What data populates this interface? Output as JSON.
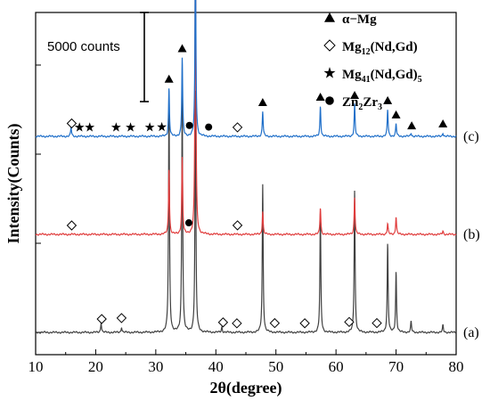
{
  "chart_data": {
    "type": "line",
    "xlabel": "2θ(degree)",
    "ylabel": "Intensity(Counts)",
    "xlim": [
      10,
      80
    ],
    "x_ticks": [
      10,
      20,
      30,
      40,
      50,
      60,
      70,
      80
    ],
    "scale_bar_label": "5000 counts",
    "scale_bar_counts": 5000,
    "grid": false,
    "legend_position": "top-right",
    "legend": [
      {
        "marker": "triangle",
        "text": "α−Mg",
        "sub": "",
        "tail": "",
        "sub2": "",
        "tail2": ""
      },
      {
        "marker": "diamond",
        "text": "Mg",
        "sub": "12",
        "tail": "(Nd,Gd)",
        "sub2": "",
        "tail2": ""
      },
      {
        "marker": "star",
        "text": "Mg",
        "sub": "41",
        "tail": "(Nd,Gd)",
        "sub2": "5",
        "tail2": ""
      },
      {
        "marker": "circle",
        "text": "Zn",
        "sub": "2",
        "tail": "Zr",
        "sub2": "3",
        "tail2": ""
      }
    ],
    "series": [
      {
        "name": "(a)",
        "color": "#404040",
        "baseline_counts": 0,
        "peaks": [
          {
            "x": 20.9,
            "height": 550
          },
          {
            "x": 24.3,
            "height": 300
          },
          {
            "x": 32.2,
            "height": 13500
          },
          {
            "x": 34.4,
            "height": 13500
          },
          {
            "x": 36.6,
            "height": 13500
          },
          {
            "x": 41.0,
            "height": 300
          },
          {
            "x": 47.8,
            "height": 8300
          },
          {
            "x": 57.4,
            "height": 6700
          },
          {
            "x": 63.1,
            "height": 8000
          },
          {
            "x": 68.6,
            "height": 5000
          },
          {
            "x": 70.0,
            "height": 3400
          },
          {
            "x": 72.5,
            "height": 600
          },
          {
            "x": 77.8,
            "height": 400
          }
        ],
        "markers": [
          {
            "type": "diamond",
            "x": 21.0
          },
          {
            "type": "diamond",
            "x": 24.3
          },
          {
            "type": "diamond",
            "x": 41.2
          },
          {
            "type": "diamond",
            "x": 43.5
          },
          {
            "type": "diamond",
            "x": 49.8
          },
          {
            "type": "diamond",
            "x": 54.8
          },
          {
            "type": "diamond",
            "x": 62.2
          },
          {
            "type": "diamond",
            "x": 66.8
          }
        ]
      },
      {
        "name": "(b)",
        "color": "#e03c3c",
        "baseline_counts": 5500,
        "peaks": [
          {
            "x": 32.2,
            "height": 3700
          },
          {
            "x": 34.4,
            "height": 4300
          },
          {
            "x": 36.6,
            "height": 17500
          },
          {
            "x": 47.8,
            "height": 1300
          },
          {
            "x": 57.4,
            "height": 1500
          },
          {
            "x": 63.1,
            "height": 2100
          },
          {
            "x": 68.6,
            "height": 600
          },
          {
            "x": 70.0,
            "height": 1000
          },
          {
            "x": 77.8,
            "height": 200
          }
        ],
        "markers": [
          {
            "type": "diamond",
            "x": 16.0
          },
          {
            "type": "circle",
            "x": 35.5
          },
          {
            "type": "diamond",
            "x": 43.6
          }
        ]
      },
      {
        "name": "(c)",
        "color": "#1f6fc9",
        "baseline_counts": 11000,
        "peaks": [
          {
            "x": 15.9,
            "height": 500
          },
          {
            "x": 32.2,
            "height": 2700
          },
          {
            "x": 34.4,
            "height": 4400
          },
          {
            "x": 36.6,
            "height": 10700
          },
          {
            "x": 47.8,
            "height": 1400
          },
          {
            "x": 57.4,
            "height": 1700
          },
          {
            "x": 63.1,
            "height": 1800
          },
          {
            "x": 68.6,
            "height": 1500
          },
          {
            "x": 70.0,
            "height": 700
          },
          {
            "x": 72.5,
            "height": 200
          },
          {
            "x": 77.8,
            "height": 200
          }
        ],
        "markers": [
          {
            "type": "diamond",
            "x": 16.0
          },
          {
            "type": "star",
            "x": 17.3
          },
          {
            "type": "star",
            "x": 19.0
          },
          {
            "type": "star",
            "x": 23.4
          },
          {
            "type": "star",
            "x": 25.8
          },
          {
            "type": "star",
            "x": 29.0
          },
          {
            "type": "star",
            "x": 31.0
          },
          {
            "type": "triangle",
            "x": 32.2
          },
          {
            "type": "triangle",
            "x": 34.4
          },
          {
            "type": "triangle",
            "x": 36.6
          },
          {
            "type": "circle",
            "x": 35.6
          },
          {
            "type": "circle",
            "x": 38.8
          },
          {
            "type": "diamond",
            "x": 43.6
          },
          {
            "type": "triangle",
            "x": 47.8
          },
          {
            "type": "triangle",
            "x": 57.4
          },
          {
            "type": "triangle",
            "x": 63.1
          },
          {
            "type": "triangle",
            "x": 68.6
          },
          {
            "type": "triangle",
            "x": 70.0
          },
          {
            "type": "triangle",
            "x": 72.6
          },
          {
            "type": "triangle",
            "x": 77.8
          }
        ]
      }
    ]
  }
}
